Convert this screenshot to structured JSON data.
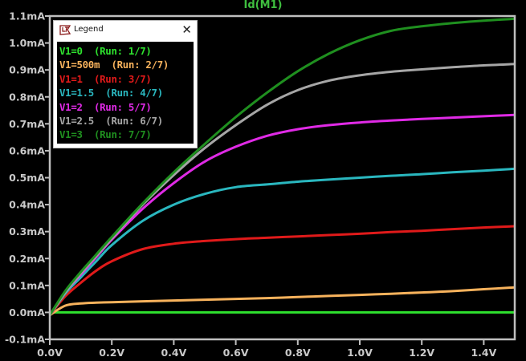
{
  "chart_data": {
    "type": "line",
    "title": "Id(M1)",
    "xlabel": "",
    "ylabel": "",
    "xlim": [
      0.0,
      1.5
    ],
    "ylim": [
      -0.1,
      1.1
    ],
    "x_unit": "V",
    "y_unit": "mA",
    "grid": false,
    "legend_position": "top-left (floating window)",
    "x_ticks": [
      "0.0V",
      "0.2V",
      "0.4V",
      "0.6V",
      "0.8V",
      "1.0V",
      "1.2V",
      "1.4V"
    ],
    "y_ticks": [
      "1.1mA",
      "1.0mA",
      "0.9mA",
      "0.8mA",
      "0.7mA",
      "0.6mA",
      "0.5mA",
      "0.4mA",
      "0.3mA",
      "0.2mA",
      "0.1mA",
      "0.0mA",
      "-0.1mA"
    ],
    "x": [
      0.0,
      0.05,
      0.1,
      0.15,
      0.2,
      0.3,
      0.4,
      0.5,
      0.6,
      0.7,
      0.8,
      0.9,
      1.0,
      1.1,
      1.2,
      1.3,
      1.4,
      1.5
    ],
    "series": [
      {
        "name": "V1=0 (Run: 1/7)",
        "color": "#2ee22e",
        "values": [
          0.0,
          0.0,
          0.0,
          0.0,
          0.0,
          0.0,
          0.0,
          0.0,
          0.0,
          0.0,
          0.0,
          0.0,
          0.0,
          0.0,
          0.0,
          0.0,
          0.0,
          0.0
        ]
      },
      {
        "name": "V1=500m (Run: 2/7)",
        "color": "#f7b25c",
        "values": [
          -0.01,
          0.025,
          0.033,
          0.036,
          0.038,
          0.041,
          0.044,
          0.047,
          0.05,
          0.053,
          0.057,
          0.061,
          0.065,
          0.069,
          0.074,
          0.079,
          0.086,
          0.093
        ]
      },
      {
        "name": "V1=1 (Run: 3/7)",
        "color": "#e01a1a",
        "values": [
          -0.01,
          0.06,
          0.11,
          0.155,
          0.19,
          0.235,
          0.255,
          0.265,
          0.272,
          0.277,
          0.282,
          0.287,
          0.292,
          0.298,
          0.303,
          0.309,
          0.315,
          0.32
        ]
      },
      {
        "name": "V1=1.5 (Run: 4/7)",
        "color": "#2ab7bf",
        "values": [
          -0.01,
          0.07,
          0.13,
          0.19,
          0.25,
          0.34,
          0.4,
          0.44,
          0.465,
          0.475,
          0.485,
          0.493,
          0.5,
          0.507,
          0.513,
          0.52,
          0.526,
          0.533
        ]
      },
      {
        "name": "V1=2 (Run: 5/7)",
        "color": "#e02ae6",
        "values": [
          -0.01,
          0.075,
          0.14,
          0.205,
          0.27,
          0.385,
          0.48,
          0.56,
          0.615,
          0.655,
          0.68,
          0.695,
          0.705,
          0.712,
          0.718,
          0.723,
          0.728,
          0.733
        ]
      },
      {
        "name": "V1=2.5 (Run: 6/7)",
        "color": "#a6a6a6",
        "values": [
          -0.01,
          0.075,
          0.145,
          0.21,
          0.275,
          0.4,
          0.51,
          0.61,
          0.695,
          0.77,
          0.825,
          0.86,
          0.88,
          0.893,
          0.902,
          0.91,
          0.917,
          0.922
        ]
      },
      {
        "name": "V1=3 (Run: 7/7)",
        "color": "#1f8f1f",
        "values": [
          -0.01,
          0.08,
          0.15,
          0.215,
          0.28,
          0.405,
          0.52,
          0.625,
          0.725,
          0.815,
          0.895,
          0.96,
          1.01,
          1.045,
          1.062,
          1.074,
          1.083,
          1.09
        ]
      }
    ]
  },
  "window": {
    "plot_title": "Id(M1)",
    "title_color": "#3fbf3f",
    "background": "#000000",
    "axis_color": "#bfbfbf"
  },
  "legend": {
    "title": "Legend",
    "icon": "ltspice-logo-icon",
    "close_label": "✕",
    "items": [
      {
        "label": "V1=0  (Run: 1/7)",
        "color": "#2ee22e"
      },
      {
        "label": "V1=500m  (Run: 2/7)",
        "color": "#f7b25c"
      },
      {
        "label": "V1=1  (Run: 3/7)",
        "color": "#e01a1a"
      },
      {
        "label": "V1=1.5  (Run: 4/7)",
        "color": "#2ab7bf"
      },
      {
        "label": "V1=2  (Run: 5/7)",
        "color": "#e02ae6"
      },
      {
        "label": "V1=2.5  (Run: 6/7)",
        "color": "#a6a6a6"
      },
      {
        "label": "V1=3  (Run: 7/7)",
        "color": "#1f8f1f"
      }
    ]
  }
}
